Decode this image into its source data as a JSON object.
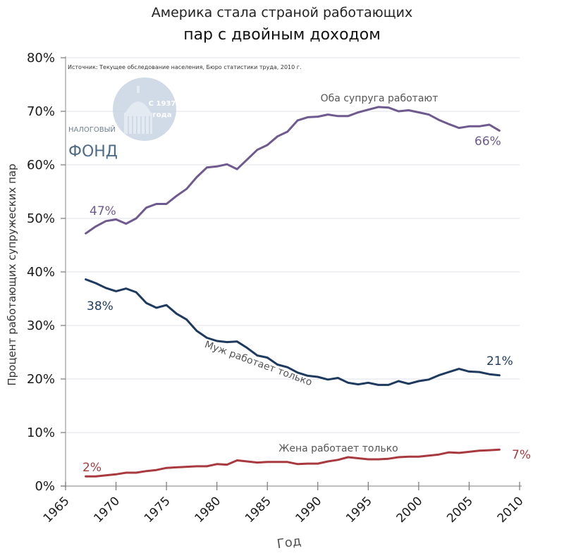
{
  "chart_data": {
    "type": "line",
    "title": "Америка стала страной работающих",
    "subtitle": "пар с двойным доходом",
    "xlabel": "Год",
    "ylabel": "Процент работающих супружеских пар",
    "source": "Источник: Текущее обследование населения, Бюро статистики труда, 2010 г.",
    "xlim": [
      1965,
      2010
    ],
    "ylim": [
      0,
      80
    ],
    "grid": true,
    "x_ticks": [
      "1965",
      "1970",
      "1975",
      "1980",
      "1985",
      "1990",
      "1995",
      "2000",
      "2005",
      "2010"
    ],
    "y_ticks": [
      "0%",
      "10%",
      "20%",
      "30%",
      "40%",
      "50%",
      "60%",
      "70%",
      "80%"
    ],
    "x": [
      1967,
      1968,
      1969,
      1970,
      1971,
      1972,
      1973,
      1974,
      1975,
      1976,
      1977,
      1978,
      1979,
      1980,
      1981,
      1982,
      1983,
      1984,
      1985,
      1986,
      1987,
      1988,
      1989,
      1990,
      1991,
      1992,
      1993,
      1994,
      1995,
      1996,
      1997,
      1998,
      1999,
      2000,
      2001,
      2002,
      2003,
      2004,
      2005,
      2006,
      2007,
      2008
    ],
    "series": [
      {
        "name": "Оба супруга работают",
        "color": "#6e5a8e",
        "start_label": "47%",
        "end_label": "66%",
        "values": [
          47.2,
          48.5,
          49.5,
          49.8,
          49.0,
          50.0,
          52.0,
          52.7,
          52.7,
          54.2,
          55.5,
          57.7,
          59.5,
          59.7,
          60.1,
          59.2,
          61.0,
          62.8,
          63.7,
          65.3,
          66.2,
          68.3,
          68.9,
          69.0,
          69.4,
          69.1,
          69.1,
          69.8,
          70.3,
          70.8,
          70.7,
          70.0,
          70.2,
          69.8,
          69.4,
          68.4,
          67.6,
          66.9,
          67.2,
          67.2,
          67.5,
          66.4
        ]
      },
      {
        "name": "Муж работает только",
        "color": "#1f3a5f",
        "start_label": "38%",
        "end_label": "21%",
        "values": [
          38.6,
          37.9,
          37.0,
          36.4,
          36.9,
          36.2,
          34.2,
          33.3,
          33.8,
          32.2,
          31.1,
          29.0,
          27.7,
          27.1,
          26.9,
          27.0,
          25.8,
          24.4,
          24.0,
          22.7,
          22.2,
          21.2,
          20.6,
          20.4,
          19.9,
          20.2,
          19.3,
          19.0,
          19.3,
          18.9,
          18.9,
          19.6,
          19.1,
          19.6,
          19.9,
          20.7,
          21.3,
          21.9,
          21.4,
          21.3,
          20.9,
          20.7
        ]
      },
      {
        "name": "Жена работает только",
        "color": "#a83a3f",
        "start_label": "2%",
        "end_label": "7%",
        "values": [
          1.8,
          1.8,
          2.0,
          2.2,
          2.5,
          2.5,
          2.8,
          3.0,
          3.4,
          3.5,
          3.6,
          3.7,
          3.7,
          4.1,
          4.0,
          4.8,
          4.6,
          4.4,
          4.5,
          4.5,
          4.5,
          4.1,
          4.2,
          4.2,
          4.6,
          4.9,
          5.4,
          5.2,
          5.0,
          5.0,
          5.1,
          5.4,
          5.5,
          5.5,
          5.7,
          5.9,
          6.3,
          6.2,
          6.4,
          6.6,
          6.7,
          6.8
        ]
      }
    ]
  },
  "watermark": {
    "small_text": "НАЛОГОВЫЙ",
    "big_text": "ФОНД",
    "badge_line1": "С 1937",
    "badge_line2": "года",
    "icon": "capitol-dome-icon"
  }
}
